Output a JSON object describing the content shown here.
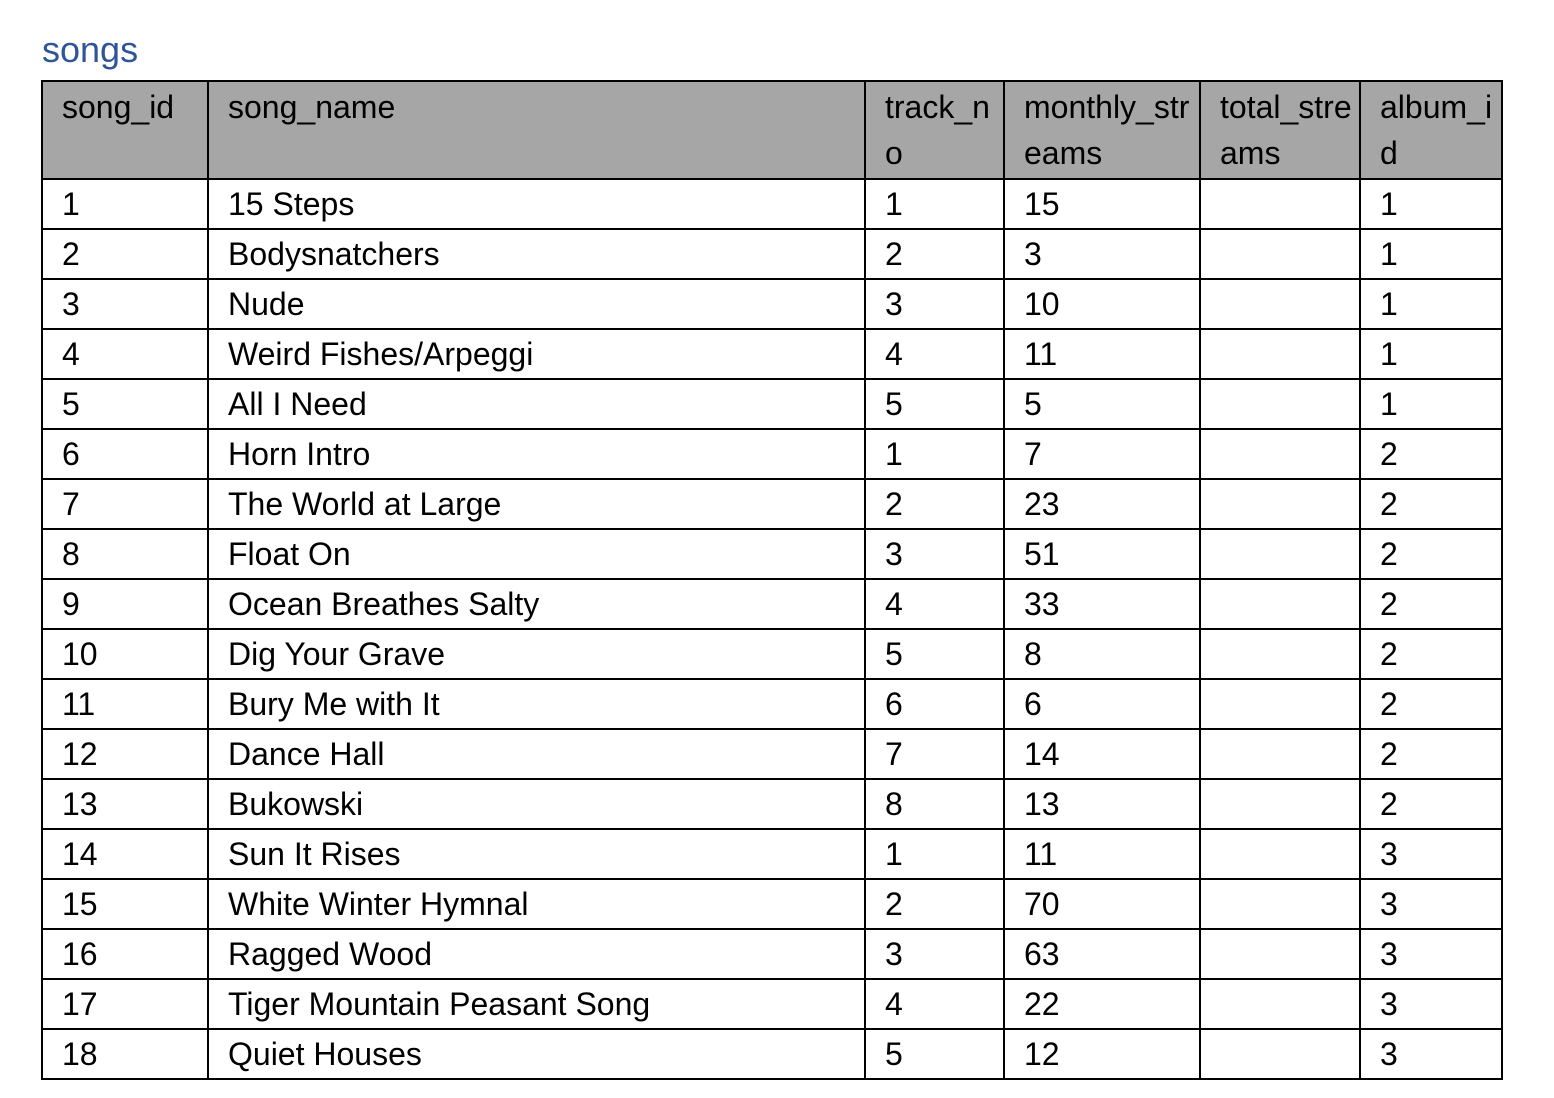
{
  "caption": "songs",
  "columns": [
    "song_id",
    "song_name",
    "track_no",
    "monthly_streams",
    "total_streams",
    "album_id"
  ],
  "rows": [
    [
      "1",
      "15 Steps",
      "1",
      "15",
      "",
      "1"
    ],
    [
      "2",
      "Bodysnatchers",
      "2",
      "3",
      "",
      "1"
    ],
    [
      "3",
      "Nude",
      "3",
      "10",
      "",
      "1"
    ],
    [
      "4",
      "Weird Fishes/Arpeggi",
      "4",
      "11",
      "",
      "1"
    ],
    [
      "5",
      "All I Need",
      "5",
      "5",
      "",
      "1"
    ],
    [
      "6",
      "Horn Intro",
      "1",
      "7",
      "",
      "2"
    ],
    [
      "7",
      "The World at Large",
      "2",
      "23",
      "",
      "2"
    ],
    [
      "8",
      "Float On",
      "3",
      "51",
      "",
      "2"
    ],
    [
      "9",
      "Ocean Breathes Salty",
      "4",
      "33",
      "",
      "2"
    ],
    [
      "10",
      "Dig Your Grave",
      "5",
      "8",
      "",
      "2"
    ],
    [
      "11",
      "Bury Me with It",
      "6",
      "6",
      "",
      "2"
    ],
    [
      "12",
      "Dance Hall",
      "7",
      "14",
      "",
      "2"
    ],
    [
      "13",
      "Bukowski",
      "8",
      "13",
      "",
      "2"
    ],
    [
      "14",
      "Sun It Rises",
      "1",
      "11",
      "",
      "3"
    ],
    [
      "15",
      "White Winter Hymnal",
      "2",
      "70",
      "",
      "3"
    ],
    [
      "16",
      "Ragged Wood",
      "3",
      "63",
      "",
      "3"
    ],
    [
      "17",
      "Tiger Mountain Peasant Song",
      "4",
      "22",
      "",
      "3"
    ],
    [
      "18",
      "Quiet Houses",
      "5",
      "12",
      "",
      "3"
    ]
  ]
}
